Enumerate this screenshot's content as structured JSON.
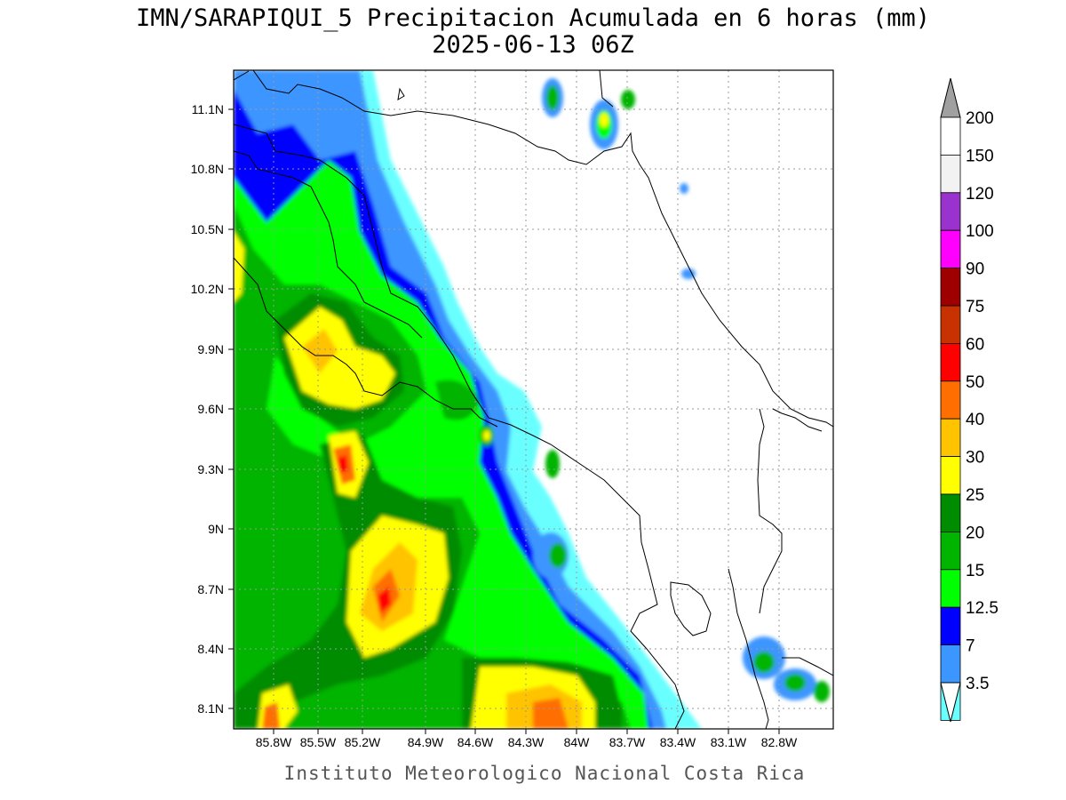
{
  "title_line1": "IMN/SARAPIQUI_5 Precipitacion Acumulada en 6 horas (mm)",
  "title_line2": "2025-06-13 06Z",
  "footer": "Instituto Meteorologico Nacional Costa Rica",
  "lat_labels": [
    "11.1N",
    "10.8N",
    "10.5N",
    "10.2N",
    "9.9N",
    "9.6N",
    "9.3N",
    "9N",
    "8.7N",
    "8.4N",
    "8.1N"
  ],
  "lon_labels": [
    "85.8W",
    "85.5W",
    "85.2W",
    "84.9W",
    "84.6W",
    "84.3W",
    "84W",
    "83.7W",
    "83.4W",
    "83.1W",
    "82.8W"
  ],
  "colorbar": {
    "labels": [
      "200",
      "150",
      "120",
      "100",
      "90",
      "75",
      "60",
      "50",
      "40",
      "30",
      "25",
      "20",
      "15",
      "12.5",
      "7",
      "3.5"
    ],
    "colors": [
      "#ffffff",
      "#f2f2f2",
      "#9a32cd",
      "#ff00ff",
      "#9e0000",
      "#c83200",
      "#ff0000",
      "#ff6e00",
      "#ffc300",
      "#ffff00",
      "#008c00",
      "#00b400",
      "#00ff00",
      "#0000ff",
      "#3c96ff",
      "#69ffff"
    ],
    "over_color": "#a0a0a0",
    "under_color": "#ffffff"
  }
}
